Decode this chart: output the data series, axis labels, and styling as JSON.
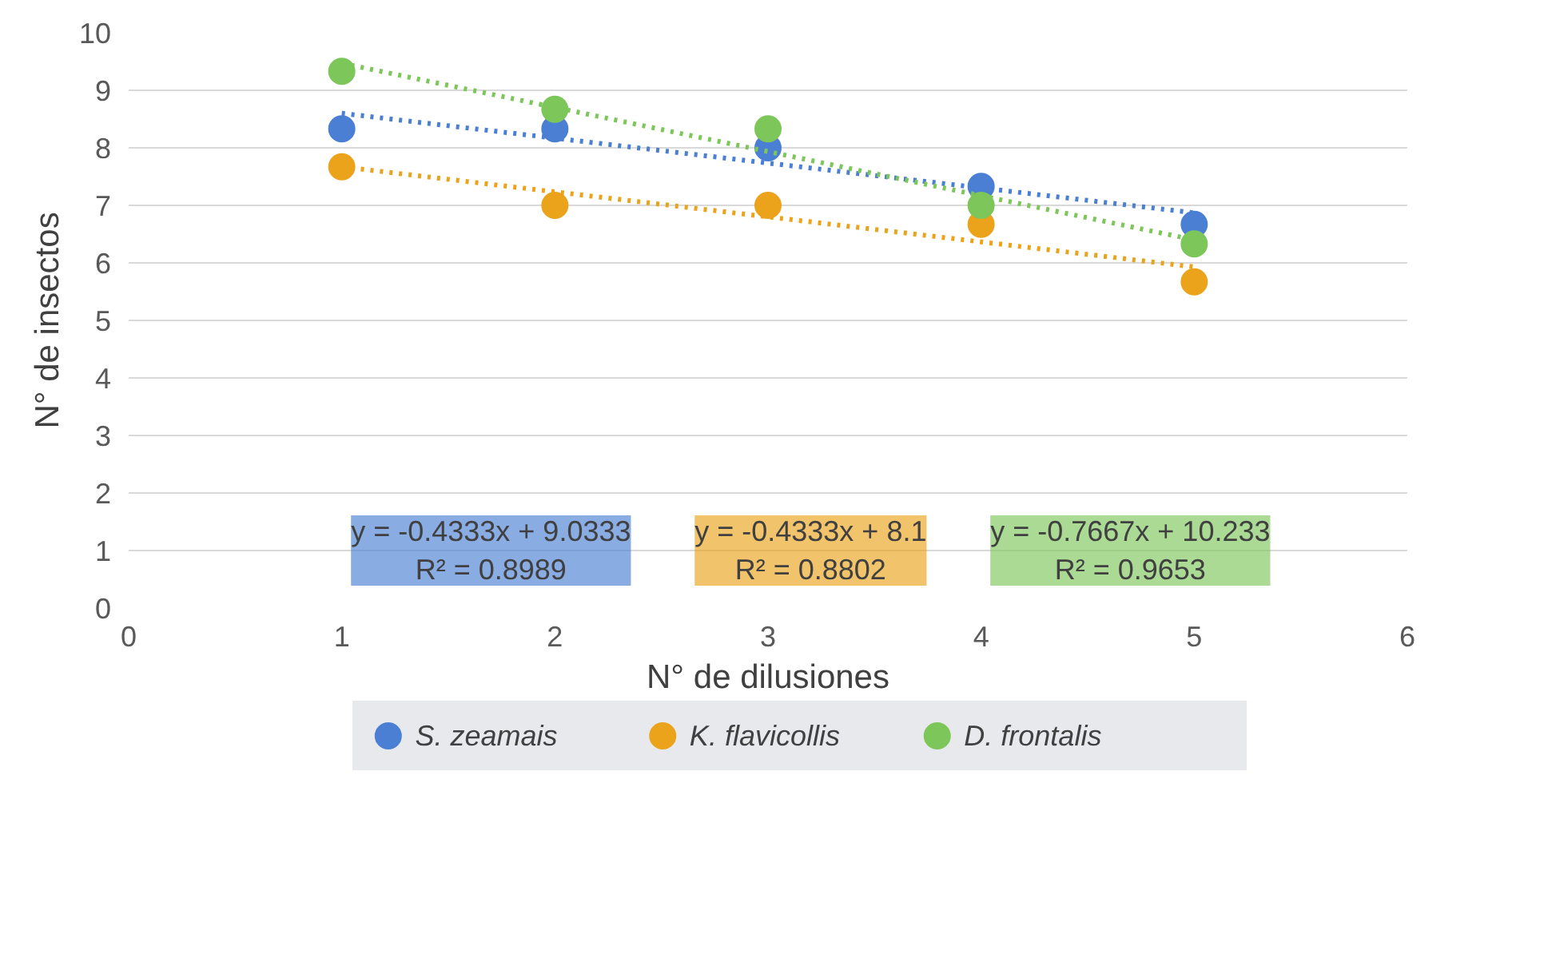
{
  "chart_data": {
    "type": "scatter",
    "xlabel": "N° de dilusiones",
    "ylabel": "N° de insectos",
    "xlim": [
      0,
      6
    ],
    "xticks": [
      0,
      1,
      2,
      3,
      4,
      5,
      6
    ],
    "ylim": [
      0,
      10
    ],
    "yticks": [
      0,
      1,
      2,
      3,
      4,
      5,
      6,
      7,
      8,
      9,
      10
    ],
    "grid": "y",
    "legend": "bottom",
    "marker": "circle",
    "series": [
      {
        "name": "S. zeamais",
        "color": "#4a7fd4",
        "x": [
          1,
          2,
          3,
          4,
          5
        ],
        "values": [
          8.33,
          8.33,
          8.0,
          7.33,
          6.67
        ]
      },
      {
        "name": "K. flavicollis",
        "color": "#eaa31b",
        "x": [
          1,
          2,
          3,
          4,
          5
        ],
        "values": [
          7.67,
          7.0,
          7.0,
          6.67,
          5.67
        ]
      },
      {
        "name": "D. frontalis",
        "color": "#7dc65a",
        "x": [
          1,
          2,
          3,
          4,
          5
        ],
        "values": [
          9.33,
          8.67,
          8.33,
          7.0,
          6.33
        ]
      },
      {
        "type": "line",
        "marker": "none",
        "line_style": "dotted",
        "color": "#4a7fd4",
        "x": [
          1,
          5
        ],
        "values": [
          8.6,
          6.87
        ]
      },
      {
        "type": "line",
        "marker": "none",
        "line_style": "dotted",
        "color": "#eaa31b",
        "x": [
          1,
          5
        ],
        "values": [
          7.67,
          5.93
        ]
      },
      {
        "type": "line",
        "marker": "none",
        "line_style": "dotted",
        "color": "#7dc65a",
        "x": [
          1,
          5
        ],
        "values": [
          9.47,
          6.4
        ]
      }
    ],
    "annotations": [
      "y = -0.4333x + 9.0333\nR² = 0.8989",
      "y = -0.4333x + 8.1\nR² = 0.8802",
      "y = -0.7667x + 10.233\nR² = 0.9653"
    ]
  }
}
